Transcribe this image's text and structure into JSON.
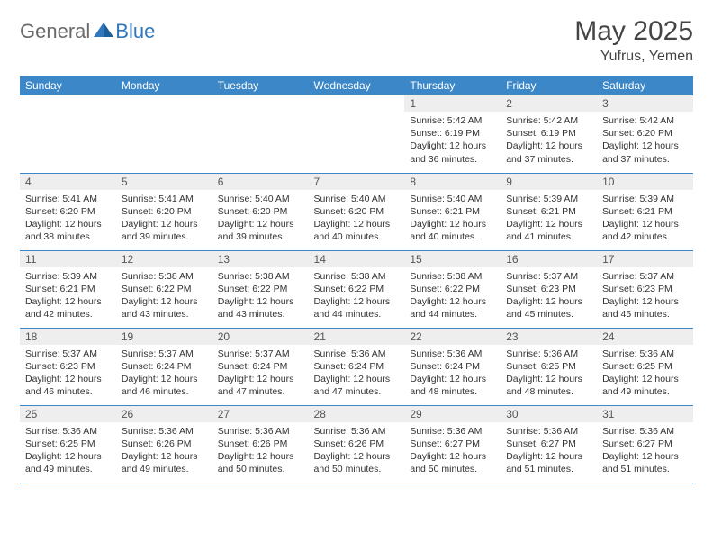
{
  "brand": {
    "part1": "General",
    "part2": "Blue"
  },
  "title": "May 2025",
  "location": "Yufrus, Yemen",
  "colors": {
    "header_bg": "#3c87c7",
    "header_text": "#ffffff",
    "daynum_bg": "#eeeeee",
    "border": "#3c87c7",
    "brand_gray": "#6a6a6a",
    "brand_blue": "#2f78bd"
  },
  "weekdays": [
    "Sunday",
    "Monday",
    "Tuesday",
    "Wednesday",
    "Thursday",
    "Friday",
    "Saturday"
  ],
  "layout": {
    "first_weekday_index": 4,
    "days_in_month": 31
  },
  "days": {
    "1": {
      "sunrise": "5:42 AM",
      "sunset": "6:19 PM",
      "daylight": "12 hours and 36 minutes."
    },
    "2": {
      "sunrise": "5:42 AM",
      "sunset": "6:19 PM",
      "daylight": "12 hours and 37 minutes."
    },
    "3": {
      "sunrise": "5:42 AM",
      "sunset": "6:20 PM",
      "daylight": "12 hours and 37 minutes."
    },
    "4": {
      "sunrise": "5:41 AM",
      "sunset": "6:20 PM",
      "daylight": "12 hours and 38 minutes."
    },
    "5": {
      "sunrise": "5:41 AM",
      "sunset": "6:20 PM",
      "daylight": "12 hours and 39 minutes."
    },
    "6": {
      "sunrise": "5:40 AM",
      "sunset": "6:20 PM",
      "daylight": "12 hours and 39 minutes."
    },
    "7": {
      "sunrise": "5:40 AM",
      "sunset": "6:20 PM",
      "daylight": "12 hours and 40 minutes."
    },
    "8": {
      "sunrise": "5:40 AM",
      "sunset": "6:21 PM",
      "daylight": "12 hours and 40 minutes."
    },
    "9": {
      "sunrise": "5:39 AM",
      "sunset": "6:21 PM",
      "daylight": "12 hours and 41 minutes."
    },
    "10": {
      "sunrise": "5:39 AM",
      "sunset": "6:21 PM",
      "daylight": "12 hours and 42 minutes."
    },
    "11": {
      "sunrise": "5:39 AM",
      "sunset": "6:21 PM",
      "daylight": "12 hours and 42 minutes."
    },
    "12": {
      "sunrise": "5:38 AM",
      "sunset": "6:22 PM",
      "daylight": "12 hours and 43 minutes."
    },
    "13": {
      "sunrise": "5:38 AM",
      "sunset": "6:22 PM",
      "daylight": "12 hours and 43 minutes."
    },
    "14": {
      "sunrise": "5:38 AM",
      "sunset": "6:22 PM",
      "daylight": "12 hours and 44 minutes."
    },
    "15": {
      "sunrise": "5:38 AM",
      "sunset": "6:22 PM",
      "daylight": "12 hours and 44 minutes."
    },
    "16": {
      "sunrise": "5:37 AM",
      "sunset": "6:23 PM",
      "daylight": "12 hours and 45 minutes."
    },
    "17": {
      "sunrise": "5:37 AM",
      "sunset": "6:23 PM",
      "daylight": "12 hours and 45 minutes."
    },
    "18": {
      "sunrise": "5:37 AM",
      "sunset": "6:23 PM",
      "daylight": "12 hours and 46 minutes."
    },
    "19": {
      "sunrise": "5:37 AM",
      "sunset": "6:24 PM",
      "daylight": "12 hours and 46 minutes."
    },
    "20": {
      "sunrise": "5:37 AM",
      "sunset": "6:24 PM",
      "daylight": "12 hours and 47 minutes."
    },
    "21": {
      "sunrise": "5:36 AM",
      "sunset": "6:24 PM",
      "daylight": "12 hours and 47 minutes."
    },
    "22": {
      "sunrise": "5:36 AM",
      "sunset": "6:24 PM",
      "daylight": "12 hours and 48 minutes."
    },
    "23": {
      "sunrise": "5:36 AM",
      "sunset": "6:25 PM",
      "daylight": "12 hours and 48 minutes."
    },
    "24": {
      "sunrise": "5:36 AM",
      "sunset": "6:25 PM",
      "daylight": "12 hours and 49 minutes."
    },
    "25": {
      "sunrise": "5:36 AM",
      "sunset": "6:25 PM",
      "daylight": "12 hours and 49 minutes."
    },
    "26": {
      "sunrise": "5:36 AM",
      "sunset": "6:26 PM",
      "daylight": "12 hours and 49 minutes."
    },
    "27": {
      "sunrise": "5:36 AM",
      "sunset": "6:26 PM",
      "daylight": "12 hours and 50 minutes."
    },
    "28": {
      "sunrise": "5:36 AM",
      "sunset": "6:26 PM",
      "daylight": "12 hours and 50 minutes."
    },
    "29": {
      "sunrise": "5:36 AM",
      "sunset": "6:27 PM",
      "daylight": "12 hours and 50 minutes."
    },
    "30": {
      "sunrise": "5:36 AM",
      "sunset": "6:27 PM",
      "daylight": "12 hours and 51 minutes."
    },
    "31": {
      "sunrise": "5:36 AM",
      "sunset": "6:27 PM",
      "daylight": "12 hours and 51 minutes."
    }
  },
  "labels": {
    "sunrise": "Sunrise:",
    "sunset": "Sunset:",
    "daylight": "Daylight:"
  }
}
